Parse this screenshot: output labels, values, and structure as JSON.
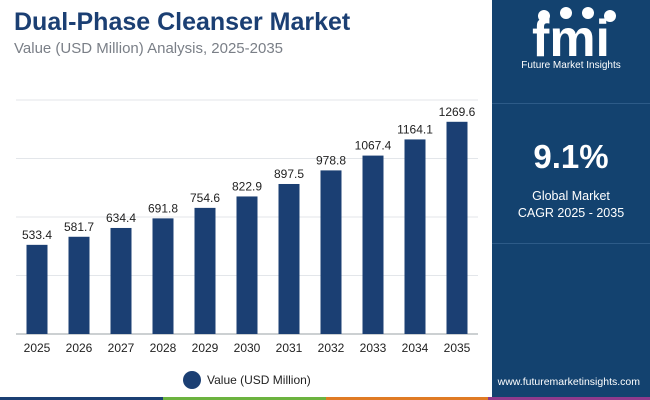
{
  "title": "Dual-Phase Cleanser Market",
  "subtitle": "Value (USD Million) Analysis, 2025-2035",
  "colors": {
    "bar": "#1b3f73",
    "panel": "#13426f",
    "bottom_bar": [
      "#1b3f73",
      "#6cb33f",
      "#e07b24",
      "#8e3a8c"
    ]
  },
  "side_panel": {
    "logo_text": "fmi",
    "logo_tagline": "Future Market Insights",
    "cagr_value": "9.1%",
    "cagr_label_line1": "Global Market",
    "cagr_label_line2": "CAGR 2025 - 2035",
    "website": "www.futuremarketinsights.com"
  },
  "chart_data": {
    "type": "bar",
    "categories": [
      "2025",
      "2026",
      "2027",
      "2028",
      "2029",
      "2030",
      "2031",
      "2032",
      "2033",
      "2034",
      "2035"
    ],
    "series": [
      {
        "name": "Value (USD Million)",
        "values": [
          533.4,
          581.7,
          634.4,
          691.8,
          754.6,
          822.9,
          897.5,
          978.8,
          1067.4,
          1164.1,
          1269.6
        ],
        "labels": [
          "533.4",
          "581.7",
          "634.4",
          "691.8",
          "754.6",
          "822.9",
          "897.5",
          "978.8",
          "1067.4",
          "1164.1",
          "1269.6"
        ]
      }
    ],
    "ylim": [
      0,
      1400
    ],
    "grid": true,
    "legend": "bottom-center"
  }
}
